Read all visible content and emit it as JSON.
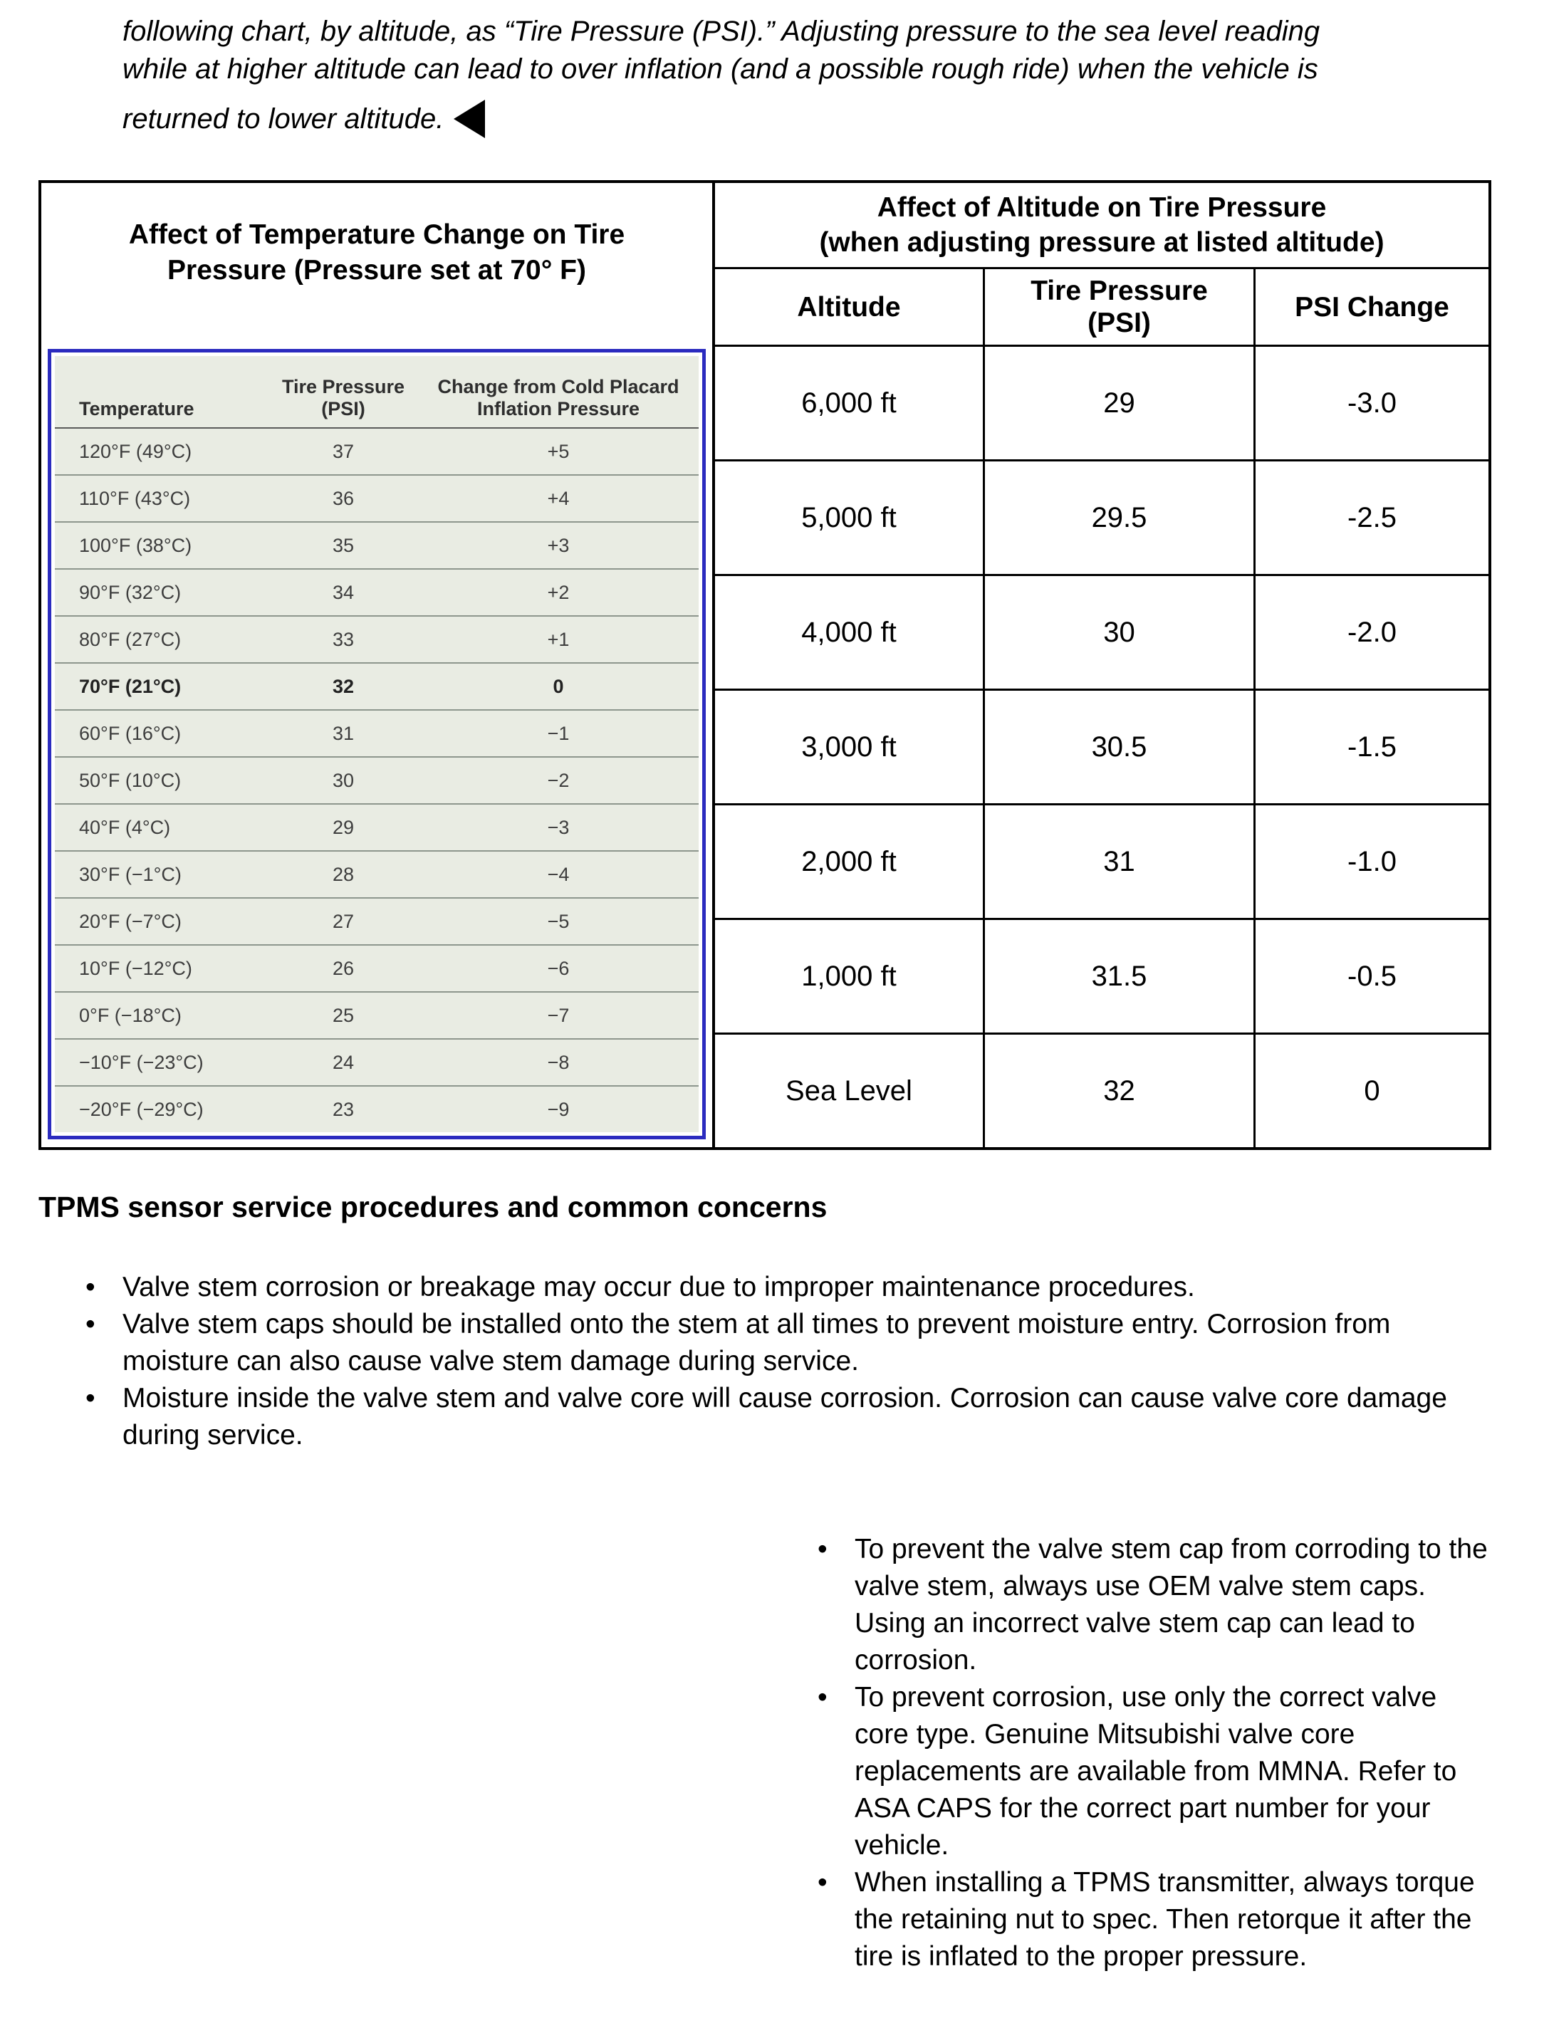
{
  "intro": {
    "lines": [
      "following chart, by altitude, as “Tire Pressure (PSI).” Adjusting pressure to the sea level reading",
      "while at higher altitude can lead to over inflation (and a possible rough ride) when the vehicle is",
      "returned to lower altitude."
    ]
  },
  "icons": {
    "back_arrow": "left-pointing-solid-triangle"
  },
  "temperature_table": {
    "title": "Affect of Temperature Change on Tire Pressure (Pressure set at 70° F)",
    "col_headers": {
      "temperature": "Temperature",
      "psi_line1": "Tire Pressure",
      "psi_line2": "(PSI)",
      "change_line1": "Change from Cold Placard",
      "change_line2": "Inflation Pressure"
    },
    "rows": [
      {
        "temp": "120°F (49°C)",
        "psi": "37",
        "change": "+5"
      },
      {
        "temp": "110°F (43°C)",
        "psi": "36",
        "change": "+4"
      },
      {
        "temp": "100°F (38°C)",
        "psi": "35",
        "change": "+3"
      },
      {
        "temp": "90°F (32°C)",
        "psi": "34",
        "change": "+2"
      },
      {
        "temp": "80°F (27°C)",
        "psi": "33",
        "change": "+1"
      },
      {
        "temp": "70°F (21°C)",
        "psi": "32",
        "change": "0"
      },
      {
        "temp": "60°F (16°C)",
        "psi": "31",
        "change": "−1"
      },
      {
        "temp": "50°F (10°C)",
        "psi": "30",
        "change": "−2"
      },
      {
        "temp": "40°F (4°C)",
        "psi": "29",
        "change": "−3"
      },
      {
        "temp": "30°F (−1°C)",
        "psi": "28",
        "change": "−4"
      },
      {
        "temp": "20°F (−7°C)",
        "psi": "27",
        "change": "−5"
      },
      {
        "temp": "10°F (−12°C)",
        "psi": "26",
        "change": "−6"
      },
      {
        "temp": "0°F (−18°C)",
        "psi": "25",
        "change": "−7"
      },
      {
        "temp": "−10°F (−23°C)",
        "psi": "24",
        "change": "−8"
      },
      {
        "temp": "−20°F (−29°C)",
        "psi": "23",
        "change": "−9"
      }
    ]
  },
  "altitude_table": {
    "title_line1": "Affect of Altitude on Tire Pressure",
    "title_line2": "(when adjusting pressure at listed altitude)",
    "col_headers": {
      "altitude": "Altitude",
      "psi": "Tire Pressure (PSI)",
      "change": "PSI Change"
    },
    "rows": [
      {
        "altitude": "6,000 ft",
        "psi": "29",
        "change": "-3.0"
      },
      {
        "altitude": "5,000 ft",
        "psi": "29.5",
        "change": "-2.5"
      },
      {
        "altitude": "4,000 ft",
        "psi": "30",
        "change": "-2.0"
      },
      {
        "altitude": "3,000 ft",
        "psi": "30.5",
        "change": "-1.5"
      },
      {
        "altitude": "2,000 ft",
        "psi": "31",
        "change": "-1.0"
      },
      {
        "altitude": "1,000 ft",
        "psi": "31.5",
        "change": "-0.5"
      },
      {
        "altitude": "Sea Level",
        "psi": "32",
        "change": "0"
      }
    ]
  },
  "tpms_section": {
    "heading": "TPMS sensor service procedures and common concerns",
    "bullets": [
      "Valve stem corrosion or breakage may occur due to improper maintenance procedures.",
      "Valve stem caps should be installed onto the stem at all times to prevent moisture entry. Corrosion from moisture can also cause valve stem damage during service.",
      "Moisture inside the valve stem and valve core will cause corrosion. Corrosion can cause valve core damage during service."
    ],
    "right_bullets": [
      "To prevent the valve stem cap from corroding to the valve stem, always use OEM valve stem caps. Using an incorrect valve stem cap can lead to corrosion.",
      "To prevent corrosion, use only the correct valve core type. Genuine Mitsubishi valve core replacements are available from MMNA. Refer to ASA CAPS for the correct part number for your vehicle.",
      "When installing a TPMS transmitter, always torque the retaining nut to spec. Then retorque it after the tire is inflated to the proper pressure."
    ]
  },
  "colors": {
    "table_border": "#000000",
    "inner_table_border": "#2b2bbf",
    "inner_table_bg": "#e9ece3"
  }
}
